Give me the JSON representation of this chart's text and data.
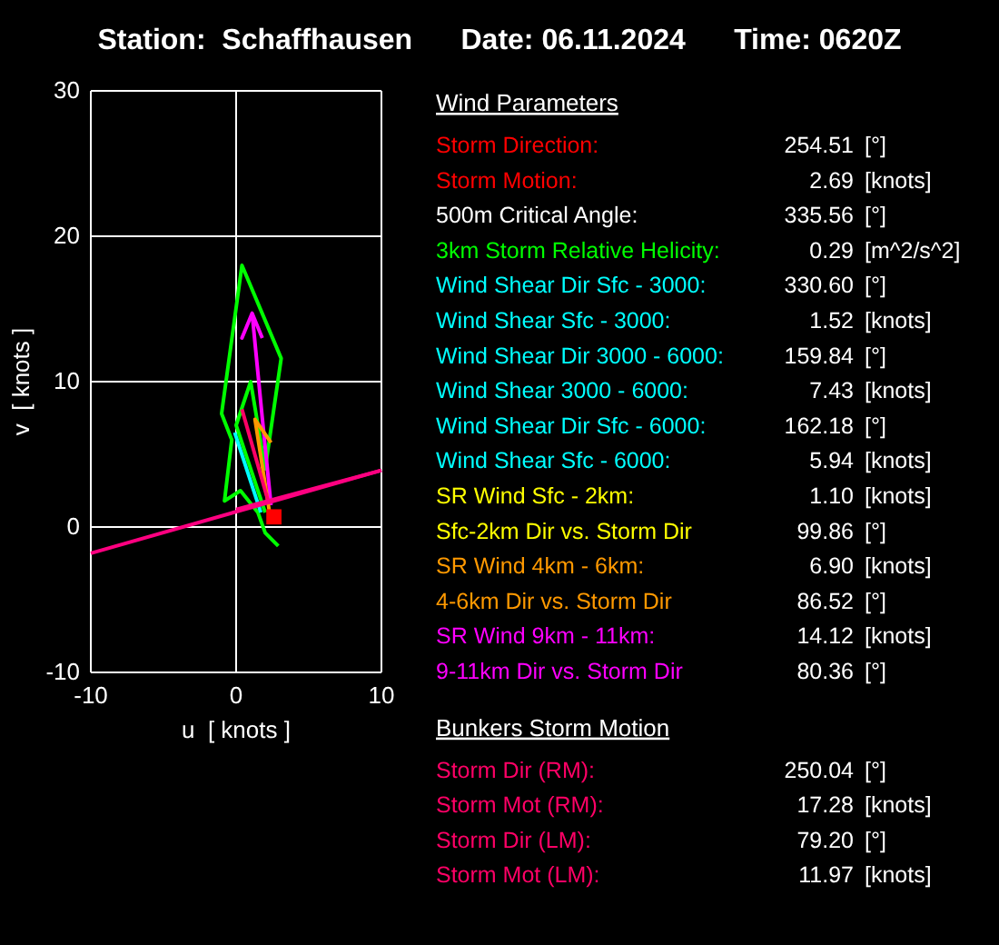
{
  "chart_data": [
    {
      "type": "line",
      "title": "Station:  Schaffhausen      Date: 06.11.2024      Time: 0620Z",
      "xlabel": "u  [ knots ]",
      "ylabel": "v  [ knots ]",
      "xlim": [
        -10,
        10
      ],
      "ylim": [
        -10,
        30
      ],
      "xticks": [
        -10,
        0,
        10
      ],
      "yticks": [
        -10,
        0,
        10,
        20,
        30
      ],
      "grid": true,
      "line_style": "solid",
      "series": [
        {
          "color": "#00ff00",
          "x": [
            2.9,
            2.0,
            1.5,
            0.3,
            -0.8,
            -0.3,
            -1.0,
            0.4,
            3.1,
            2.0,
            1.0,
            0.0,
            2.0
          ],
          "values": [
            -1.3,
            -0.4,
            1.0,
            2.5,
            1.8,
            6.0,
            7.8,
            18.0,
            11.6,
            4.0,
            10.0,
            7.0,
            1.0
          ]
        },
        {
          "color": "#ff00ff",
          "x": [
            2.4,
            1.8,
            1.1,
            0.4,
            1.1,
            1.8
          ],
          "values": [
            1.5,
            7.5,
            14.7,
            13,
            14.7,
            13
          ]
        },
        {
          "color": "#ff9900",
          "x": [
            2.3,
            1.3,
            2.4
          ],
          "values": [
            1.0,
            7.4,
            5.8
          ]
        },
        {
          "color": "#00ffff",
          "x": [
            1.7,
            -0.1
          ],
          "values": [
            1.0,
            6.5
          ]
        },
        {
          "color": "#ff0066",
          "x": [
            2.2,
            0.4
          ],
          "values": [
            1.8,
            8.1
          ]
        },
        {
          "color": "#ff0080",
          "x": [
            -10,
            10
          ],
          "values": [
            -1.8,
            3.9
          ]
        },
        {
          "color": "#ff0080",
          "x": [
            0,
            10
          ],
          "values": [
            1.2,
            3.9
          ]
        },
        {
          "color": "#ff0000",
          "type": "scatter",
          "marker": "square",
          "x": [
            2.6
          ],
          "values": [
            0.7
          ]
        }
      ]
    },
    {
      "type": "other",
      "title": "Wind Parameters",
      "cell_labels": [
        [
          "Storm Direction:",
          "254.51",
          "[°]"
        ],
        [
          "Storm Motion:",
          "2.69",
          "[knots]"
        ],
        [
          "500m Critical Angle:",
          "335.56",
          "[°]"
        ],
        [
          "3km Storm Relative Helicity:",
          "0.29",
          "[m^2/s^2]"
        ],
        [
          "Wind Shear Dir Sfc - 3000:",
          "330.60",
          "[°]"
        ],
        [
          "Wind Shear Sfc - 3000:",
          "1.52",
          "[knots]"
        ],
        [
          "Wind Shear Dir 3000 - 6000:",
          "159.84",
          "[°]"
        ],
        [
          "Wind Shear 3000 - 6000:",
          "7.43",
          "[knots]"
        ],
        [
          "Wind Shear Dir Sfc - 6000:",
          "162.18",
          "[°]"
        ],
        [
          "Wind Shear Sfc - 6000:",
          "5.94",
          "[knots]"
        ],
        [
          "SR Wind Sfc - 2km:",
          "1.10",
          "[knots]"
        ],
        [
          "Sfc-2km Dir vs. Storm Dir",
          "99.86",
          "[°]"
        ],
        [
          "SR Wind 4km - 6km:",
          "6.90",
          "[knots]"
        ],
        [
          "4-6km Dir vs. Storm Dir",
          "86.52",
          "[°]"
        ],
        [
          "SR Wind 9km - 11km:",
          "14.12",
          "[knots]"
        ],
        [
          "9-11km Dir vs. Storm Dir",
          "80.36",
          "[°]"
        ]
      ],
      "colors": [
        "#ff0000",
        "#ff0000",
        "#ffffff",
        "#00ff00",
        "#00ffff",
        "#00ffff",
        "#00ffff",
        "#00ffff",
        "#00ffff",
        "#00ffff",
        "#ffff00",
        "#ffff00",
        "#ff9900",
        "#ff9900",
        "#ff00ff",
        "#ff00ff"
      ]
    },
    {
      "type": "other",
      "title": "Bunkers Storm Motion",
      "cell_labels": [
        [
          "Storm Dir (RM):",
          "250.04",
          "[°]"
        ],
        [
          "Storm Mot (RM):",
          "17.28",
          "[knots]"
        ],
        [
          "Storm Dir (LM):",
          "79.20",
          "[°]"
        ],
        [
          "Storm Mot (LM):",
          "11.97",
          "[knots]"
        ]
      ],
      "colors": [
        "#ff0066",
        "#ff0066",
        "#ff0066",
        "#ff0066"
      ]
    }
  ]
}
